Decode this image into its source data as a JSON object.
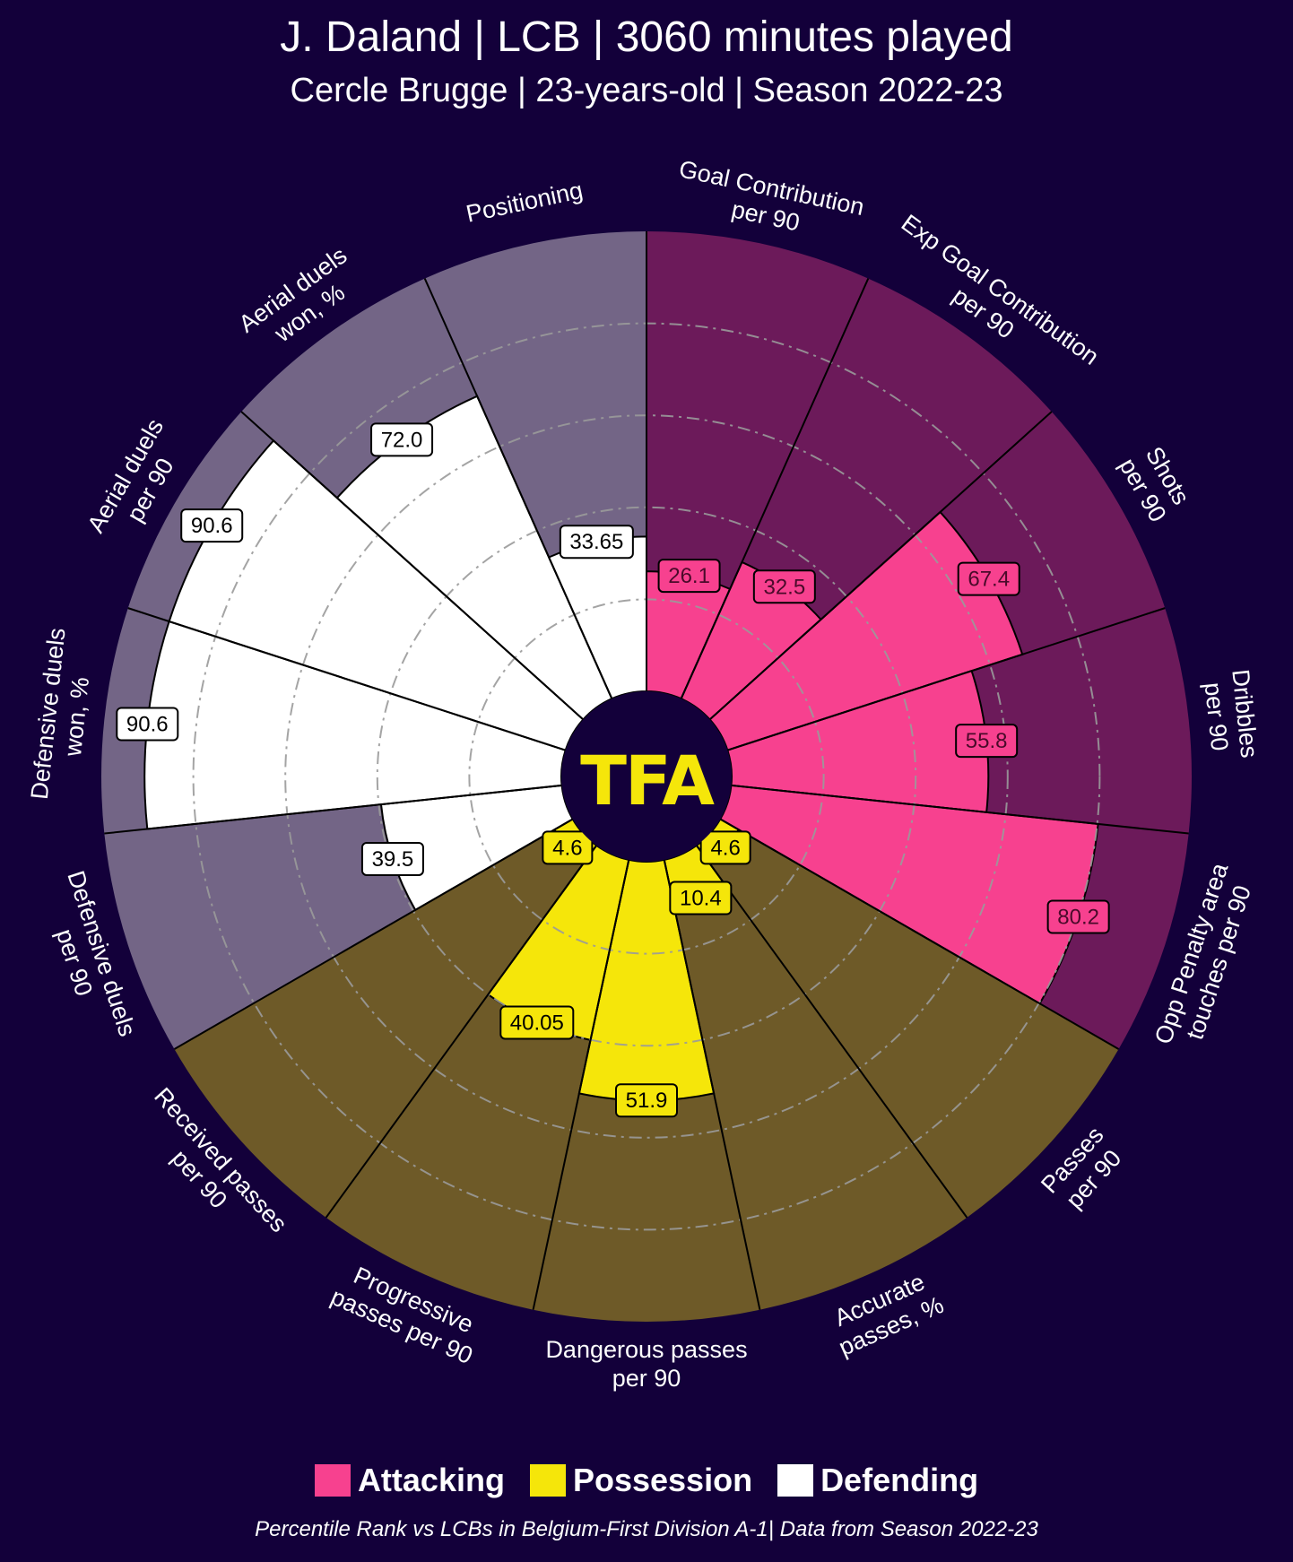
{
  "chart_data": {
    "type": "pie",
    "subtype": "radar-pizza",
    "title": "J. Daland | LCB | 3060 minutes played",
    "subtitle": "Cercle Brugge | 23-years-old | Season 2022-23",
    "footnote": "Percentile Rank vs LCBs in Belgium-First Division A-1| Data from Season 2022-23",
    "logo_text": "TFA",
    "range": [
      0,
      100
    ],
    "gridlines": [
      20,
      40,
      60,
      80
    ],
    "legend": [
      {
        "name": "Attacking",
        "color": "#f7418f"
      },
      {
        "name": "Possession",
        "color": "#f5e60a"
      },
      {
        "name": "Defending",
        "color": "#ffffff"
      }
    ],
    "categories": [
      {
        "label": "Goal Contribution\nper 90",
        "value": 26.1,
        "display": "26.1",
        "group": "Attacking"
      },
      {
        "label": "Exp Goal Contribution\nper 90",
        "value": 32.5,
        "display": "32.5",
        "group": "Attacking"
      },
      {
        "label": "Shots\nper 90",
        "value": 67.4,
        "display": "67.4",
        "group": "Attacking"
      },
      {
        "label": "Dribbles\nper 90",
        "value": 55.8,
        "display": "55.8",
        "group": "Attacking"
      },
      {
        "label": "Opp Penalty area\ntouches per 90",
        "value": 80.2,
        "display": "80.2",
        "group": "Attacking"
      },
      {
        "label": "Passes\nper 90",
        "value": 4.6,
        "display": "4.6",
        "group": "Possession"
      },
      {
        "label": "Accurate\npasses, %",
        "value": 10.4,
        "display": "10.4",
        "group": "Possession"
      },
      {
        "label": "Dangerous passes\nper 90",
        "value": 51.9,
        "display": "51.9",
        "group": "Possession"
      },
      {
        "label": "Progressive\npasses per 90",
        "value": 40.05,
        "display": "40.05",
        "group": "Possession"
      },
      {
        "label": "Received passes\nper 90",
        "value": 4.6,
        "display": "4.6",
        "group": "Possession"
      },
      {
        "label": "Defensive duels\nper 90",
        "value": 39.5,
        "display": "39.5",
        "group": "Defending"
      },
      {
        "label": "Defensive duels\nwon, %",
        "value": 90.6,
        "display": "90.6",
        "group": "Defending"
      },
      {
        "label": "Aerial duels\nper 90",
        "value": 90.6,
        "display": "90.6",
        "group": "Defending"
      },
      {
        "label": "Aerial duels\nwon, %",
        "value": 72.0,
        "display": "72.0",
        "group": "Defending"
      },
      {
        "label": "Positioning",
        "value": 33.65,
        "display": "33.65",
        "group": "Defending"
      }
    ],
    "colors": {
      "background": "#13003a",
      "attacking_bg": "#6c1a5a",
      "possession_bg": "#6e5a28",
      "defending_bg": "#736586",
      "edge": "#000000",
      "grid": "#9a9a9a",
      "logo_text": "#f5e60a"
    }
  }
}
